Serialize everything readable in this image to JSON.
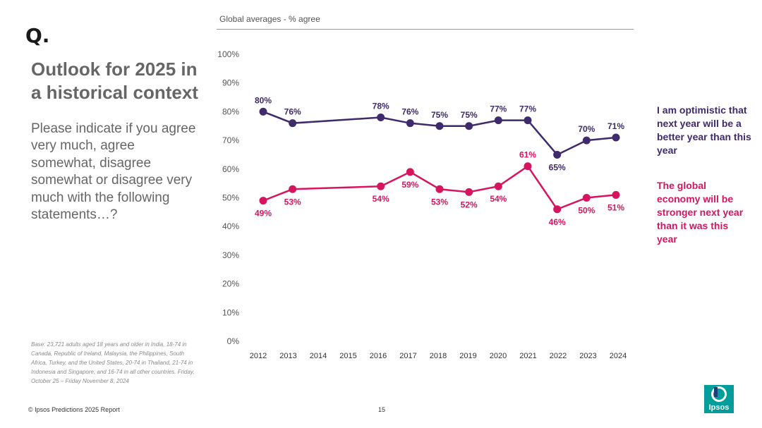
{
  "logo": {
    "text": "Q."
  },
  "title": "Outlook for 2025 in a historical context",
  "question": "Please indicate if you agree very much, agree somewhat, disagree somewhat or disagree very much with the following statements…?",
  "base_note": "Base: 23,721 adults aged 18 years and older in India, 18-74 in Canada, Republic of Ireland, Malaysia, the Philippines, South Africa, Turkey, and the United States, 20-74 in Thailand, 21-74 in Indonesia and Singapore, and 16-74 in all other countries. Friday, October 25 – Friday November 8, 2024",
  "footer": {
    "copyright": "© Ipsos Predictions 2025 Report",
    "page": "15"
  },
  "brand": {
    "name": "Ipsos",
    "color": "#009d9a"
  },
  "chart_data": {
    "type": "line",
    "title": "Global averages - % agree",
    "x": [
      2012,
      2013,
      2016,
      2017,
      2018,
      2019,
      2020,
      2021,
      2022,
      2023,
      2024
    ],
    "x_ticks": [
      "2012",
      "2013",
      "2014",
      "2015",
      "2016",
      "2017",
      "2018",
      "2019",
      "2020",
      "2021",
      "2022",
      "2023",
      "2024"
    ],
    "y_ticks": [
      "0%",
      "10%",
      "20%",
      "30%",
      "40%",
      "50%",
      "60%",
      "70%",
      "80%",
      "90%",
      "100%"
    ],
    "ylim": [
      0,
      100
    ],
    "xlim": [
      2012,
      2024
    ],
    "grid": false,
    "series": [
      {
        "name": "I am optimistic that next year will be a better year than this year",
        "color": "#3f2a6b",
        "values": [
          80,
          76,
          78,
          76,
          75,
          75,
          77,
          77,
          65,
          70,
          71
        ],
        "labels": [
          "80%",
          "76%",
          "78%",
          "76%",
          "75%",
          "75%",
          "77%",
          "77%",
          "65%",
          "70%",
          "71%"
        ],
        "label_pos": [
          "above",
          "above",
          "above",
          "above",
          "above",
          "above",
          "above",
          "above",
          "below",
          "above",
          "above"
        ]
      },
      {
        "name": "The global economy will be stronger next year than it was this year",
        "color": "#d6145f",
        "values": [
          49,
          53,
          54,
          59,
          53,
          52,
          54,
          61,
          46,
          50,
          51
        ],
        "labels": [
          "49%",
          "53%",
          "54%",
          "59%",
          "53%",
          "52%",
          "54%",
          "61%",
          "46%",
          "50%",
          "51%"
        ],
        "label_pos": [
          "below",
          "below",
          "below",
          "below",
          "below",
          "below",
          "below",
          "above",
          "below",
          "below",
          "below"
        ]
      }
    ]
  }
}
